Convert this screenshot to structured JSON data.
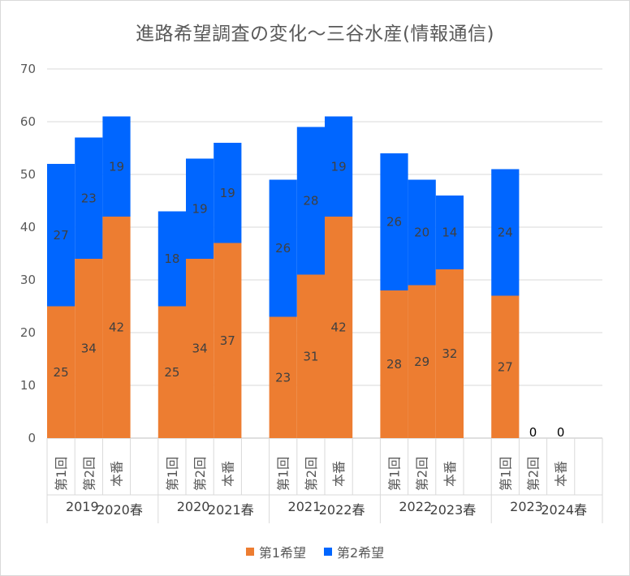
{
  "chart_data": {
    "type": "bar",
    "stacked": true,
    "title": "進路希望調査の変化～三谷水産(情報通信)",
    "ylim": [
      0,
      70
    ],
    "yticks": [
      0,
      10,
      20,
      30,
      40,
      50,
      60,
      70
    ],
    "grid": true,
    "legend_position": "bottom",
    "groups": [
      {
        "label": "2019",
        "label2": "2020春",
        "categories": [
          "第1回",
          "第2回",
          "本番"
        ]
      },
      {
        "label": "2020",
        "label2": "2021春",
        "categories": [
          "第1回",
          "第2回",
          "本番"
        ]
      },
      {
        "label": "2021",
        "label2": "2022春",
        "categories": [
          "第1回",
          "第2回",
          "本番"
        ]
      },
      {
        "label": "2022",
        "label2": "2023春",
        "categories": [
          "第1回",
          "第2回",
          "本番"
        ]
      },
      {
        "label": "2023",
        "label2": "2024春",
        "categories": [
          "第1回",
          "第2回",
          "本番"
        ]
      }
    ],
    "series": [
      {
        "name": "第1希望",
        "color": "#ed7d31",
        "values": [
          25,
          34,
          42,
          25,
          34,
          37,
          23,
          31,
          42,
          28,
          29,
          32,
          27,
          0,
          0
        ]
      },
      {
        "name": "第2希望",
        "color": "#0066ff",
        "values": [
          27,
          23,
          19,
          18,
          19,
          19,
          26,
          28,
          19,
          26,
          20,
          14,
          24,
          0,
          0
        ]
      }
    ]
  }
}
